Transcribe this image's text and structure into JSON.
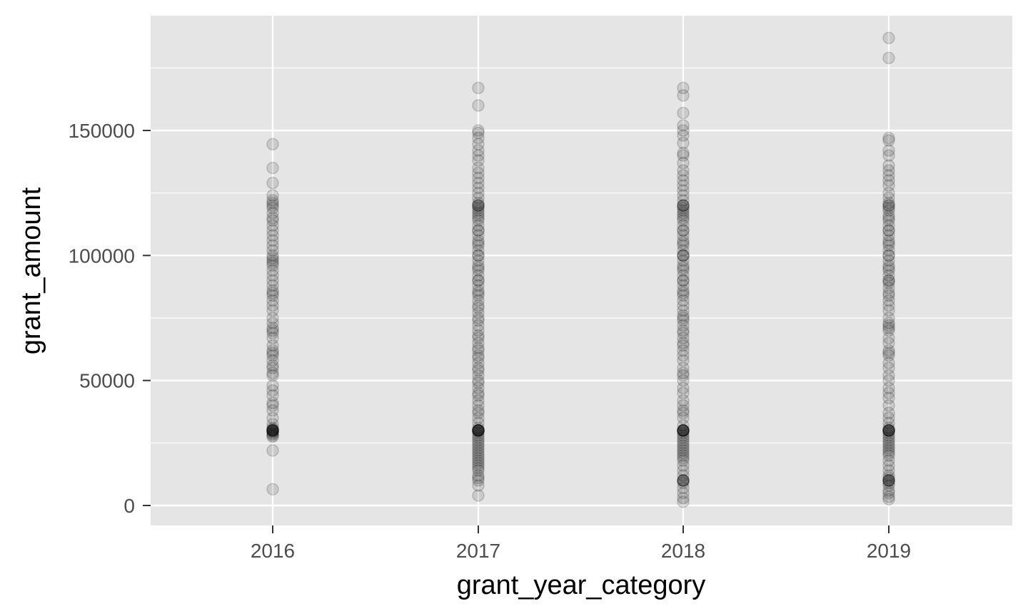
{
  "chart_data": {
    "type": "scatter",
    "title": "",
    "xlabel": "grant_year_category",
    "ylabel": "grant_amount",
    "categories": [
      "2016",
      "2017",
      "2018",
      "2019"
    ],
    "ylim": [
      -8000,
      195000
    ],
    "y_ticks": [
      0,
      50000,
      100000,
      150000
    ],
    "y_tick_labels": [
      "0",
      "50000",
      "100000",
      "150000"
    ],
    "y_minor_ticks": [
      25000,
      75000,
      125000,
      175000
    ],
    "grid": true,
    "point_color": "#000000",
    "point_alpha": 0.12,
    "panel_background": "#e5e5e5",
    "grid_color": "#ffffff",
    "tick_label_color": "#4d4d4d",
    "series": [
      {
        "category": "2016",
        "values": [
          6500,
          22000,
          27500,
          28000,
          28500,
          29000,
          29500,
          30000,
          30000,
          30000,
          30000,
          30000,
          30000,
          30500,
          31000,
          32500,
          35000,
          38000,
          40000,
          41000,
          44000,
          46000,
          48000,
          52000,
          53000,
          55000,
          56000,
          58000,
          60000,
          61000,
          62000,
          64000,
          67000,
          69000,
          70000,
          71000,
          73000,
          75000,
          78000,
          80000,
          82000,
          84000,
          85000,
          86000,
          88000,
          90000,
          92000,
          94000,
          96000,
          97000,
          98000,
          99000,
          100000,
          102000,
          104000,
          106000,
          108000,
          110000,
          112000,
          114000,
          115000,
          117000,
          119000,
          120000,
          121000,
          122000,
          124000,
          129000,
          135000,
          144500
        ]
      },
      {
        "category": "2017",
        "values": [
          4000,
          8000,
          10000,
          11000,
          12000,
          14000,
          15000,
          16000,
          17000,
          18000,
          19000,
          20000,
          21000,
          22000,
          23000,
          24000,
          25000,
          26000,
          27000,
          28000,
          29000,
          30000,
          30000,
          30000,
          30000,
          30000,
          30000,
          30000,
          30000,
          31000,
          33000,
          35000,
          37000,
          38000,
          40000,
          42000,
          44000,
          45000,
          47000,
          49000,
          50000,
          52000,
          54000,
          55000,
          57000,
          59000,
          60000,
          62000,
          63000,
          65000,
          67000,
          68000,
          70000,
          72000,
          74000,
          75000,
          77000,
          79000,
          80000,
          82000,
          84000,
          85000,
          86000,
          88000,
          90000,
          90000,
          92000,
          94000,
          95000,
          96000,
          98000,
          100000,
          100000,
          102000,
          104000,
          105000,
          106000,
          108000,
          110000,
          110000,
          112000,
          114000,
          115000,
          116000,
          117000,
          118000,
          119000,
          120000,
          120000,
          120000,
          121000,
          123000,
          125000,
          127000,
          129000,
          131000,
          133000,
          135000,
          138000,
          140000,
          142000,
          144500,
          147000,
          149000,
          150000,
          160000,
          167000
        ]
      },
      {
        "category": "2018",
        "values": [
          1500,
          3000,
          5000,
          7000,
          9000,
          10000,
          10000,
          10000,
          10000,
          12000,
          14000,
          16000,
          18000,
          19000,
          20000,
          21000,
          22000,
          23000,
          24000,
          25000,
          26000,
          27000,
          28000,
          29000,
          30000,
          30000,
          30000,
          30000,
          30000,
          30000,
          30000,
          32000,
          35000,
          37000,
          38000,
          40000,
          42000,
          45000,
          47000,
          50000,
          52000,
          53000,
          55000,
          58000,
          60000,
          62000,
          64000,
          65000,
          67000,
          69000,
          70000,
          72000,
          74000,
          75000,
          76000,
          78000,
          80000,
          82000,
          84000,
          85000,
          86000,
          88000,
          90000,
          90000,
          92000,
          94000,
          95000,
          96000,
          98000,
          100000,
          100000,
          100000,
          102000,
          104000,
          105000,
          106000,
          108000,
          110000,
          110000,
          112000,
          114000,
          115000,
          116000,
          117000,
          118000,
          119000,
          120000,
          120000,
          120000,
          122000,
          124000,
          126000,
          128000,
          130000,
          132000,
          134000,
          137000,
          140000,
          141000,
          145000,
          148000,
          150000,
          152000,
          157000,
          164000,
          167000
        ]
      },
      {
        "category": "2019",
        "values": [
          2500,
          3500,
          5000,
          6000,
          8000,
          9000,
          10000,
          10000,
          10000,
          10000,
          11000,
          12000,
          14000,
          16000,
          18000,
          20000,
          21000,
          22000,
          23000,
          24000,
          25000,
          26000,
          27000,
          28000,
          29000,
          30000,
          30000,
          30000,
          30000,
          30000,
          30000,
          31000,
          33000,
          35000,
          37000,
          40000,
          43000,
          45000,
          47000,
          50000,
          52000,
          55000,
          57000,
          60000,
          61000,
          62000,
          65000,
          67000,
          70000,
          71000,
          72000,
          73000,
          75000,
          78000,
          80000,
          82000,
          84000,
          85000,
          87000,
          89000,
          90000,
          90000,
          92000,
          94000,
          95000,
          96000,
          98000,
          100000,
          100000,
          102000,
          104000,
          105000,
          106000,
          108000,
          110000,
          110000,
          112000,
          114000,
          115000,
          116000,
          118000,
          119000,
          120000,
          120000,
          121000,
          123000,
          125000,
          128000,
          130000,
          132000,
          134000,
          136000,
          140000,
          142000,
          146000,
          147000,
          179000,
          187000
        ]
      }
    ]
  }
}
